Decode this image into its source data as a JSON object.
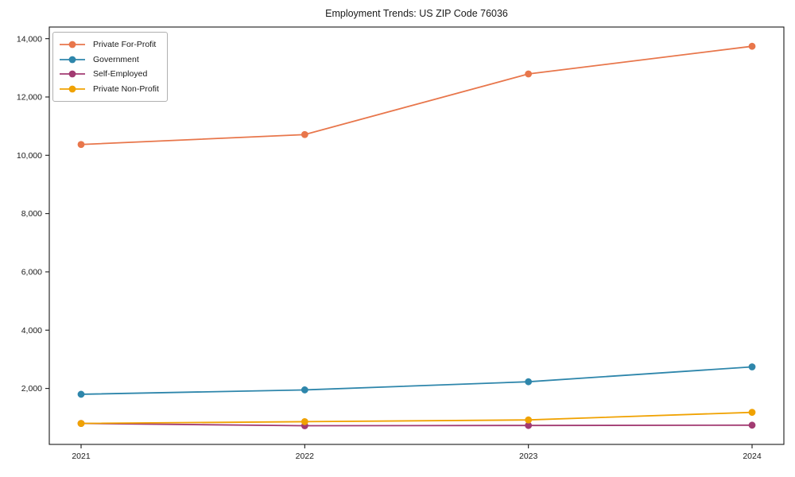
{
  "figure": {
    "title": "Employment Trends: US ZIP Code 76036"
  },
  "chart_data": {
    "type": "line",
    "title": "Employment Trends: US ZIP Code 76036",
    "categories": [
      "2021",
      "2022",
      "2023",
      "2024"
    ],
    "series": [
      {
        "name": "Private For-Profit",
        "color": "#E8764B",
        "values": [
          10370,
          10710,
          12790,
          13740
        ]
      },
      {
        "name": "Government",
        "color": "#2E86AB",
        "values": [
          1800,
          1950,
          2230,
          2740
        ]
      },
      {
        "name": "Self-Employed",
        "color": "#A23B72",
        "values": [
          800,
          720,
          730,
          740
        ]
      },
      {
        "name": "Private Non-Profit",
        "color": "#F0A202",
        "values": [
          800,
          860,
          920,
          1180
        ]
      }
    ],
    "xlabel": "",
    "ylabel": "",
    "ylim": [
      80,
      14400
    ],
    "yticks": [
      2000,
      4000,
      6000,
      8000,
      10000,
      12000,
      14000
    ],
    "ytick_labels": [
      "2,000",
      "4,000",
      "6,000",
      "8,000",
      "10,000",
      "12,000",
      "14,000"
    ],
    "grid": false,
    "legend_position": "upper-left",
    "axis_color": "#1a1a1a",
    "marker": "circle"
  }
}
